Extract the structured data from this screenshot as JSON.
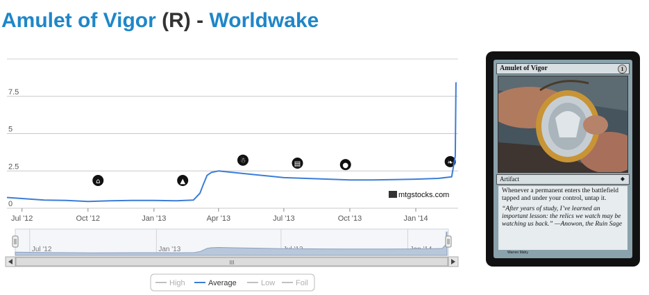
{
  "header": {
    "card_name": "Amulet of Vigor",
    "rarity": "(R)",
    "separator": "-",
    "set_name": "Worldwake"
  },
  "colors": {
    "link": "#1f86c8",
    "series_average": "#3b7dd8",
    "legend_inactive": "#c0c0c0"
  },
  "chart_data": {
    "type": "line",
    "title": "",
    "xlabel": "",
    "ylabel": "",
    "ylim": [
      0,
      10
    ],
    "yticks": [
      0,
      2.5,
      5,
      7.5
    ],
    "ytick_labels": [
      "0",
      "2.5",
      "5",
      "7.5"
    ],
    "x_domain": [
      "2012-06-10",
      "2014-03-01"
    ],
    "xticks": [
      "2012-07-01",
      "2012-10-01",
      "2013-01-01",
      "2013-04-01",
      "2013-07-01",
      "2013-10-01",
      "2014-01-01"
    ],
    "xtick_labels": [
      "Jul '12",
      "Oct '12",
      "Jan '13",
      "Apr '13",
      "Jul '13",
      "Oct '13",
      "Jan '14"
    ],
    "grid": true,
    "legend_position": "bottom-center",
    "series": [
      {
        "name": "Average",
        "x": [
          "2012-06-10",
          "2012-07-01",
          "2012-08-01",
          "2012-09-01",
          "2012-10-01",
          "2012-11-01",
          "2012-12-01",
          "2013-01-01",
          "2013-02-01",
          "2013-02-25",
          "2013-03-06",
          "2013-03-10",
          "2013-03-16",
          "2013-03-22",
          "2013-04-01",
          "2013-05-01",
          "2013-06-01",
          "2013-07-01",
          "2013-08-01",
          "2013-09-01",
          "2013-10-01",
          "2013-11-01",
          "2013-12-01",
          "2014-01-01",
          "2014-02-01",
          "2014-02-20",
          "2014-02-25",
          "2014-02-26",
          "2014-02-27"
        ],
        "y": [
          0.72,
          0.65,
          0.55,
          0.52,
          0.45,
          0.5,
          0.52,
          0.52,
          0.5,
          0.55,
          1.0,
          1.5,
          2.2,
          2.4,
          2.5,
          2.35,
          2.2,
          2.05,
          2.0,
          1.95,
          1.9,
          1.9,
          1.92,
          1.95,
          2.0,
          2.1,
          3.5,
          8.4,
          8.4
        ]
      }
    ],
    "legend": [
      {
        "label": "High",
        "active": false
      },
      {
        "label": "Average",
        "active": true
      },
      {
        "label": "Low",
        "active": false
      },
      {
        "label": "Foil",
        "active": false
      }
    ],
    "watermark": "mtgstocks.com",
    "set_markers": [
      {
        "date": "2012-10-15",
        "icon": "set-symbol-icon"
      },
      {
        "date": "2013-02-10",
        "icon": "set-symbol-icon"
      },
      {
        "date": "2013-05-05",
        "icon": "set-symbol-icon"
      },
      {
        "date": "2013-07-20",
        "icon": "set-symbol-icon"
      },
      {
        "date": "2013-09-25",
        "icon": "set-symbol-icon"
      },
      {
        "date": "2014-02-18",
        "icon": "set-symbol-icon"
      }
    ],
    "navigator": {
      "xtick_labels": [
        "Jul '12",
        "Jan '13",
        "Jul '13",
        "Jan '14"
      ],
      "xticks": [
        "2012-07-01",
        "2013-01-01",
        "2013-07-01",
        "2014-01-01"
      ],
      "scrollbar_grip": "III"
    }
  },
  "card_image": {
    "name": "Amulet of Vigor",
    "mana_cost": "1",
    "type_line": "Artifact",
    "rules_text": "Whenever a permanent enters the battlefield tapped and under your control, untap it.",
    "flavor_text": "“After years of study, I’ve learned an important lesson: the relics we watch may be watching us back.” —Anowon, the Ruin Sage",
    "artist": "Warren Mahy"
  }
}
